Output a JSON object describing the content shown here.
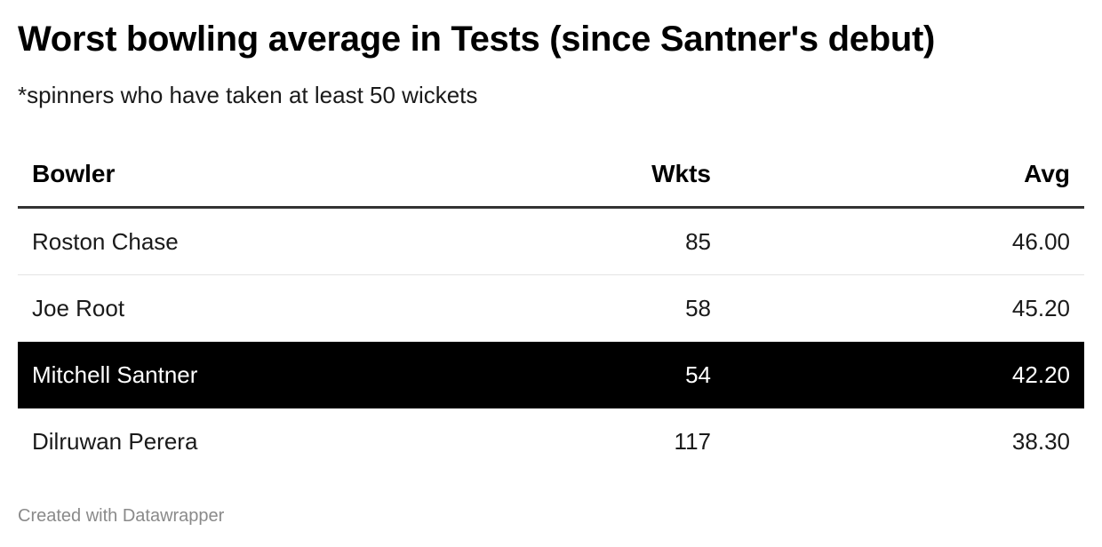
{
  "title": "Worst bowling average in Tests (since Santner's debut)",
  "subtitle": "*spinners who have taken at least 50 wickets",
  "footer": "Created with Datawrapper",
  "colors": {
    "highlight_bg": "#000000",
    "highlight_text": "#ffffff"
  },
  "chart_data": {
    "type": "table",
    "columns": [
      "Bowler",
      "Wkts",
      "Avg"
    ],
    "rows": [
      {
        "bowler": "Roston Chase",
        "wkts": "85",
        "avg": "46.00",
        "highlighted": false
      },
      {
        "bowler": "Joe Root",
        "wkts": "58",
        "avg": "45.20",
        "highlighted": false
      },
      {
        "bowler": "Mitchell Santner",
        "wkts": "54",
        "avg": "42.20",
        "highlighted": true
      },
      {
        "bowler": "Dilruwan Perera",
        "wkts": "117",
        "avg": "38.30",
        "highlighted": false
      }
    ]
  }
}
